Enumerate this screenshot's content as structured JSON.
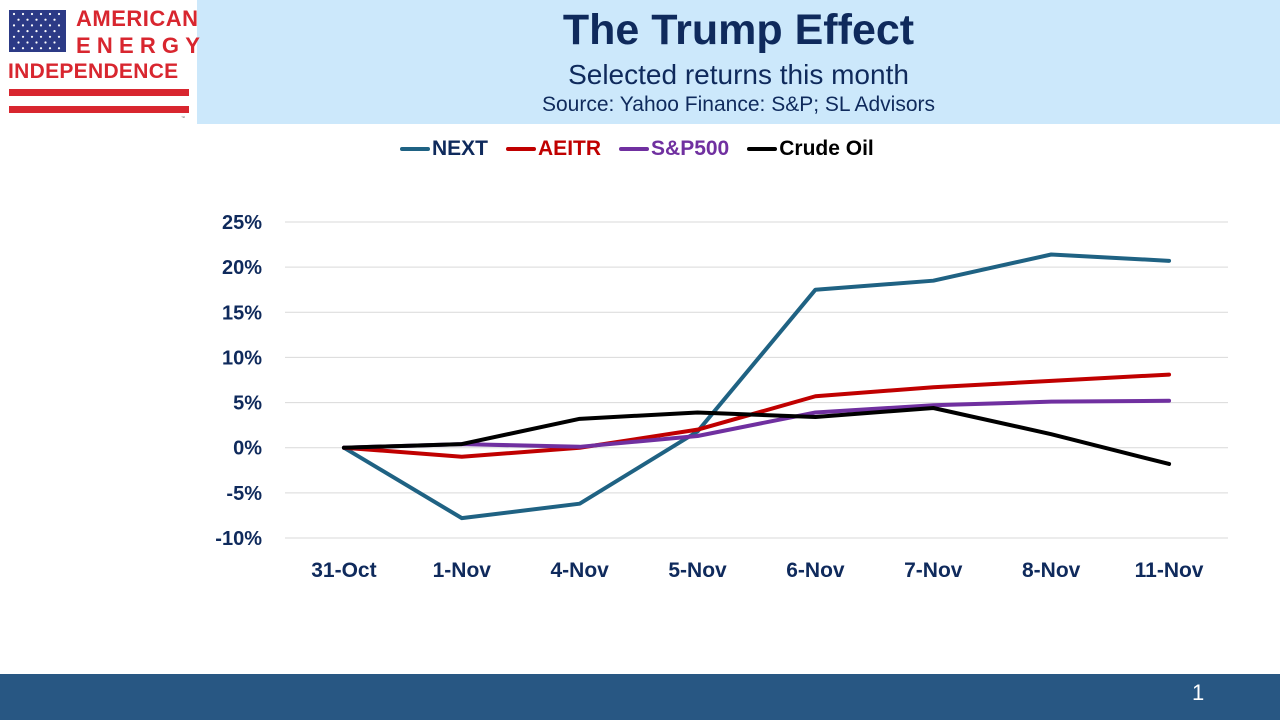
{
  "logo": {
    "line1": "AMERICAN",
    "line2": "ENERGY",
    "line3": "INDEPENDENCE",
    "trademark": "™",
    "flag_icon": "us-flag-icon"
  },
  "header": {
    "title": "The Trump Effect",
    "subtitle": "Selected returns this month",
    "source": "Source: Yahoo Finance: S&P; SL Advisors"
  },
  "footer": {
    "page_number": "1"
  },
  "colors": {
    "header_band": "#cce8fb",
    "title_text": "#0f2a5c",
    "logo_red": "#d8262f",
    "footer_band": "#285783"
  },
  "chart_data": {
    "type": "line",
    "title": "The Trump Effect",
    "subtitle": "Selected returns this month",
    "xlabel": "",
    "ylabel": "",
    "categories": [
      "31-Oct",
      "1-Nov",
      "4-Nov",
      "5-Nov",
      "6-Nov",
      "7-Nov",
      "8-Nov",
      "11-Nov"
    ],
    "ylim": [
      -10,
      25
    ],
    "yticks": [
      25,
      20,
      15,
      10,
      5,
      0,
      -5,
      -10
    ],
    "ytick_labels": [
      "25%",
      "20%",
      "15%",
      "10%",
      "5%",
      "0%",
      "-5%",
      "-10%"
    ],
    "y_format": "percent",
    "grid": true,
    "legend_position": "top",
    "series": [
      {
        "name": "NEXT",
        "color": "#1f6283",
        "values": [
          0,
          -7.8,
          -6.2,
          1.8,
          17.5,
          18.5,
          21.4,
          20.7
        ]
      },
      {
        "name": "AEITR",
        "color": "#c00000",
        "values": [
          0,
          -1.0,
          0.0,
          2.0,
          5.7,
          6.7,
          7.4,
          8.1
        ]
      },
      {
        "name": "S&P500",
        "color": "#7030a0",
        "values": [
          0,
          0.4,
          0.1,
          1.3,
          3.9,
          4.7,
          5.1,
          5.2
        ]
      },
      {
        "name": "Crude Oil",
        "color": "#000000",
        "values": [
          0,
          0.4,
          3.2,
          3.9,
          3.4,
          4.4,
          1.5,
          -1.8
        ]
      }
    ]
  }
}
